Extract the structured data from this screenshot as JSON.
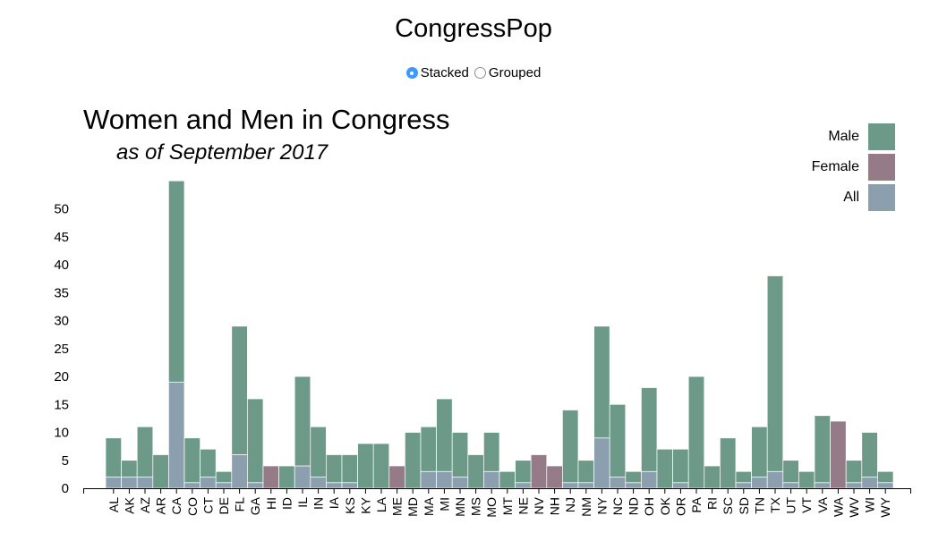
{
  "app": {
    "title": "CongressPop"
  },
  "mode_toggle": {
    "options": [
      {
        "label": "Stacked",
        "checked": true
      },
      {
        "label": "Grouped",
        "checked": false
      }
    ]
  },
  "legend": [
    {
      "label": "Male",
      "color": "#6d9a88"
    },
    {
      "label": "Female",
      "color": "#957b87"
    },
    {
      "label": "All",
      "color": "#8b9fae"
    }
  ],
  "chart_data": {
    "type": "bar",
    "stacked": true,
    "title": "Women and Men in Congress",
    "subtitle": "as of September 2017",
    "xlabel": "",
    "ylabel": "",
    "ylim": [
      0,
      55
    ],
    "yticks": [
      0,
      5,
      10,
      15,
      20,
      25,
      30,
      35,
      40,
      45,
      50
    ],
    "legend_position": "top-right",
    "grid": false,
    "categories": [
      "AL",
      "AK",
      "AZ",
      "AR",
      "CA",
      "CO",
      "CT",
      "DE",
      "FL",
      "GA",
      "HI",
      "ID",
      "IL",
      "IN",
      "IA",
      "KS",
      "KY",
      "LA",
      "ME",
      "MD",
      "MA",
      "MI",
      "MN",
      "MS",
      "MO",
      "MT",
      "NE",
      "NV",
      "NH",
      "NJ",
      "NM",
      "NY",
      "NC",
      "ND",
      "OH",
      "OK",
      "OR",
      "PA",
      "RI",
      "SC",
      "SD",
      "TN",
      "TX",
      "UT",
      "VT",
      "VA",
      "WA",
      "WV",
      "WI",
      "WY"
    ],
    "series": [
      {
        "name": "Female",
        "values": [
          2,
          2,
          2,
          0,
          19,
          1,
          2,
          1,
          6,
          1,
          4,
          0,
          4,
          2,
          1,
          1,
          0,
          0,
          4,
          0,
          3,
          3,
          2,
          0,
          3,
          0,
          1,
          6,
          4,
          1,
          1,
          9,
          2,
          1,
          3,
          0,
          1,
          0,
          0,
          0,
          1,
          2,
          3,
          1,
          0,
          1,
          12,
          1,
          2,
          1
        ]
      },
      {
        "name": "Male",
        "values": [
          7,
          3,
          9,
          6,
          36,
          8,
          5,
          2,
          23,
          15,
          0,
          4,
          16,
          9,
          5,
          5,
          8,
          8,
          0,
          10,
          8,
          13,
          8,
          6,
          7,
          3,
          4,
          0,
          0,
          13,
          4,
          20,
          13,
          2,
          15,
          7,
          6,
          20,
          4,
          9,
          2,
          9,
          35,
          4,
          3,
          12,
          0,
          4,
          8,
          2
        ]
      }
    ]
  }
}
